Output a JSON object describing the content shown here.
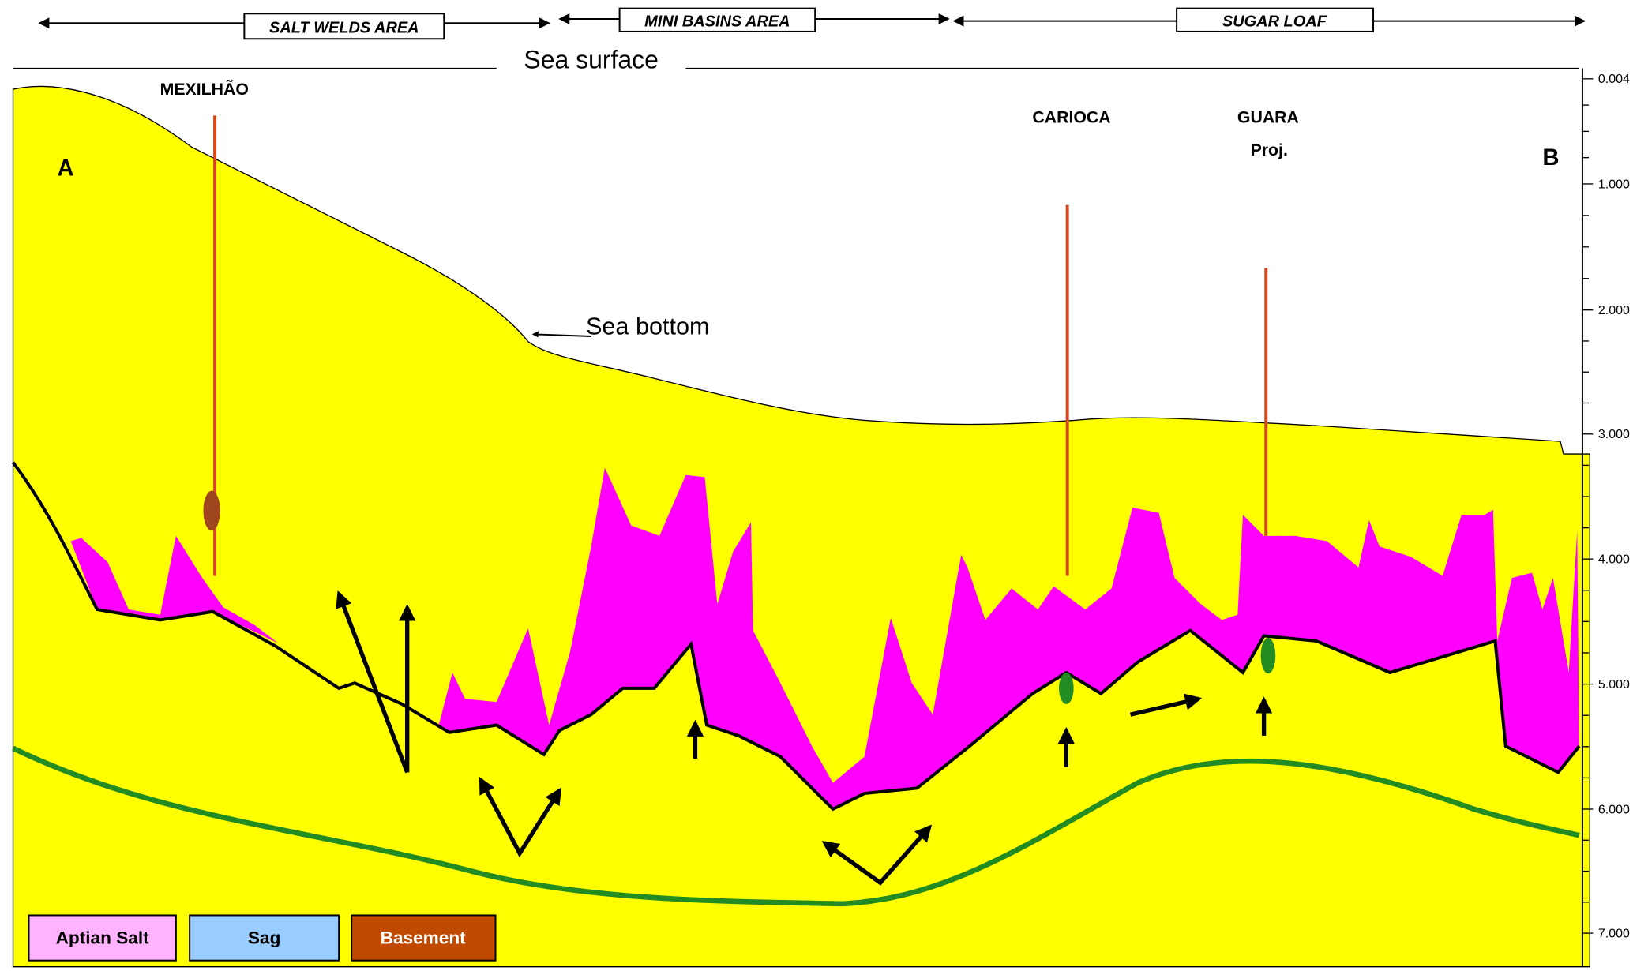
{
  "header": {
    "areas": [
      "SALT WELDS AREA",
      "MINI BASINS AREA",
      "SUGAR LOAF"
    ],
    "sea_surface": "Sea surface",
    "sea_bottom": "Sea bottom"
  },
  "section": {
    "start": "A",
    "end": "B"
  },
  "wells": [
    {
      "label": "MEXILHÃO"
    },
    {
      "label": "CARIOCA"
    },
    {
      "label": "GUARA",
      "note": "Proj."
    }
  ],
  "scale": {
    "ticks": [
      "0.004",
      "1.000",
      "2.000",
      "3.000",
      "4.000",
      "5.000",
      "6.000",
      "7.000"
    ]
  },
  "legend": [
    "Aptian Salt",
    "Sag",
    "Basement"
  ]
}
